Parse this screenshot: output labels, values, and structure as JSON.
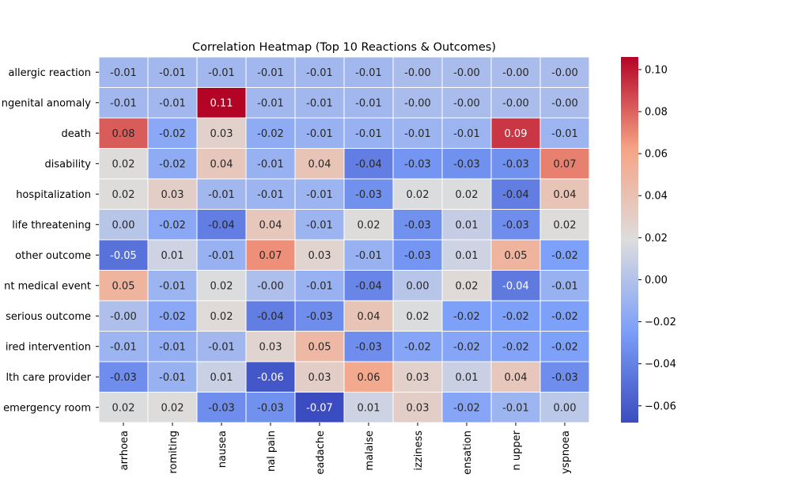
{
  "chart_data": {
    "type": "heatmap",
    "title": "Correlation Heatmap (Top 10 Reactions & Outcomes)",
    "xlabel": "",
    "ylabel": "",
    "row_labels": [
      "allergic reaction",
      "ngenital anomaly",
      "death",
      "disability",
      "hospitalization",
      "life threatening",
      "other outcome",
      "nt medical event",
      "serious outcome",
      "ired intervention",
      "lth care provider",
      "emergency room"
    ],
    "col_labels": [
      "arrhoea",
      "romiting",
      "nausea",
      "nal pain",
      "eadache",
      "malaise",
      "izziness",
      "ensation",
      "n upper",
      "yspnoea"
    ],
    "cell_labels": [
      [
        "-0.01",
        "-0.01",
        "-0.01",
        "-0.01",
        "-0.01",
        "-0.01",
        "-0.00",
        "-0.00",
        "-0.00",
        "-0.00"
      ],
      [
        "-0.01",
        "-0.01",
        "0.11",
        "-0.01",
        "-0.01",
        "-0.01",
        "-0.00",
        "-0.00",
        "-0.00",
        "-0.00"
      ],
      [
        "0.08",
        "-0.02",
        "0.03",
        "-0.02",
        "-0.01",
        "-0.01",
        "-0.01",
        "-0.01",
        "0.09",
        "-0.01"
      ],
      [
        "0.02",
        "-0.02",
        "0.04",
        "-0.01",
        "0.04",
        "-0.04",
        "-0.03",
        "-0.03",
        "-0.03",
        "0.07"
      ],
      [
        "0.02",
        "0.03",
        "-0.01",
        "-0.01",
        "-0.01",
        "-0.03",
        "0.02",
        "0.02",
        "-0.04",
        "0.04"
      ],
      [
        "0.00",
        "-0.02",
        "-0.04",
        "0.04",
        "-0.01",
        "0.02",
        "-0.03",
        "0.01",
        "-0.03",
        "0.02"
      ],
      [
        "-0.05",
        "0.01",
        "-0.01",
        "0.07",
        "0.03",
        "-0.01",
        "-0.03",
        "0.01",
        "0.05",
        "-0.02"
      ],
      [
        "0.05",
        "-0.01",
        "0.02",
        "-0.00",
        "-0.01",
        "-0.04",
        "0.00",
        "0.02",
        "-0.04",
        "-0.01"
      ],
      [
        "-0.00",
        "-0.02",
        "0.02",
        "-0.04",
        "-0.03",
        "0.04",
        "0.02",
        "-0.02",
        "-0.02",
        "-0.02"
      ],
      [
        "-0.01",
        "-0.01",
        "-0.01",
        "0.03",
        "0.05",
        "-0.03",
        "-0.02",
        "-0.02",
        "-0.02",
        "-0.02"
      ],
      [
        "-0.03",
        "-0.01",
        "0.01",
        "-0.06",
        "0.03",
        "0.06",
        "0.03",
        "0.01",
        "0.04",
        "-0.03"
      ],
      [
        "0.02",
        "0.02",
        "-0.03",
        "-0.03",
        "-0.07",
        "0.01",
        "0.03",
        "-0.02",
        "-0.01",
        "0.00"
      ]
    ],
    "values": [
      [
        -0.008,
        -0.008,
        -0.008,
        -0.008,
        -0.008,
        -0.008,
        -0.004,
        -0.004,
        -0.004,
        -0.004
      ],
      [
        -0.008,
        -0.008,
        0.106,
        -0.008,
        -0.008,
        -0.008,
        -0.004,
        -0.004,
        -0.004,
        -0.004
      ],
      [
        0.082,
        -0.018,
        0.028,
        -0.016,
        -0.012,
        -0.012,
        -0.01,
        -0.01,
        0.092,
        -0.01
      ],
      [
        0.02,
        -0.016,
        0.036,
        -0.012,
        0.038,
        -0.042,
        -0.03,
        -0.032,
        -0.032,
        0.072
      ],
      [
        0.02,
        0.03,
        -0.008,
        -0.01,
        -0.01,
        -0.032,
        0.018,
        0.018,
        -0.042,
        0.038
      ],
      [
        0.002,
        -0.018,
        -0.042,
        0.036,
        -0.01,
        0.02,
        -0.032,
        0.008,
        -0.034,
        0.02
      ],
      [
        -0.048,
        0.012,
        -0.012,
        0.068,
        0.026,
        -0.012,
        -0.03,
        0.012,
        0.05,
        -0.024
      ],
      [
        0.05,
        -0.01,
        0.018,
        -0.002,
        -0.012,
        -0.038,
        0.002,
        0.022,
        -0.044,
        -0.012
      ],
      [
        -0.002,
        -0.018,
        0.022,
        -0.042,
        -0.034,
        0.038,
        0.018,
        -0.024,
        -0.024,
        -0.024
      ],
      [
        -0.01,
        -0.014,
        -0.008,
        0.026,
        0.046,
        -0.034,
        -0.02,
        -0.02,
        -0.022,
        -0.024
      ],
      [
        -0.034,
        -0.012,
        0.01,
        -0.062,
        0.03,
        0.058,
        0.028,
        0.01,
        0.036,
        -0.034
      ],
      [
        0.018,
        0.02,
        -0.034,
        -0.032,
        -0.068,
        0.012,
        0.03,
        -0.02,
        -0.01,
        0.004
      ]
    ],
    "vmin": -0.068,
    "vmax": 0.106,
    "colormap": "coolwarm",
    "colorbar_ticks": [
      "0.10",
      "0.08",
      "0.06",
      "0.04",
      "0.02",
      "0.00",
      "−0.02",
      "−0.04",
      "−0.06"
    ],
    "colorbar_tick_values": [
      0.1,
      0.08,
      0.06,
      0.04,
      0.02,
      0.0,
      -0.02,
      -0.04,
      -0.06
    ],
    "grid": true
  }
}
